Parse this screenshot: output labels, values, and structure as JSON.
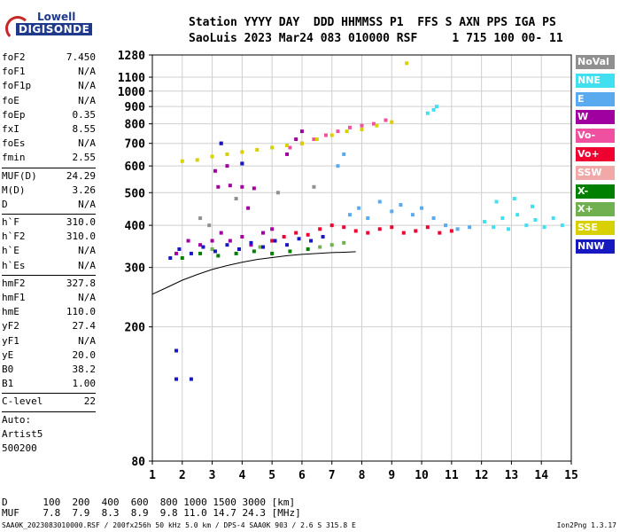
{
  "logo": {
    "line1": "Lowell",
    "line2": "DIGISONDE"
  },
  "header": {
    "row1": "Station YYYY DAY  DDD HHMMSS P1  FFS S AXN PPS IGA PS",
    "row2": "SaoLuis 2023 Mar24 083 010000 RSF     1 715 100 00- 11"
  },
  "params": [
    {
      "k": "foF2",
      "v": "7.450"
    },
    {
      "k": "foF1",
      "v": "N/A"
    },
    {
      "k": "foF1p",
      "v": "N/A"
    },
    {
      "k": "foE",
      "v": "N/A"
    },
    {
      "k": "foEp",
      "v": "0.35"
    },
    {
      "k": "fxI",
      "v": "8.55"
    },
    {
      "k": "foEs",
      "v": "N/A"
    },
    {
      "k": "fmin",
      "v": "2.55"
    },
    {
      "k": "MUF(D)",
      "v": "24.29",
      "sep": true
    },
    {
      "k": "M(D)",
      "v": "3.26"
    },
    {
      "k": "D",
      "v": "N/A"
    },
    {
      "k": "h`F",
      "v": "310.0",
      "sep": true
    },
    {
      "k": "h`F2",
      "v": "310.0"
    },
    {
      "k": "h`E",
      "v": "N/A"
    },
    {
      "k": "h`Es",
      "v": "N/A"
    },
    {
      "k": "hmF2",
      "v": "327.8",
      "sep": true
    },
    {
      "k": "hmF1",
      "v": "N/A"
    },
    {
      "k": "hmE",
      "v": "110.0"
    },
    {
      "k": "yF2",
      "v": "27.4"
    },
    {
      "k": "yF1",
      "v": "N/A"
    },
    {
      "k": "yE",
      "v": "20.0"
    },
    {
      "k": "B0",
      "v": "38.2"
    },
    {
      "k": "B1",
      "v": "1.00"
    },
    {
      "k": "C-level",
      "v": "22",
      "sep": true
    },
    {
      "k": "Auto:",
      "v": "",
      "sep": true
    },
    {
      "k": "Artist5",
      "v": ""
    },
    {
      "k": "500200",
      "v": ""
    }
  ],
  "legend": [
    {
      "label": "NoVal",
      "color": "#909090"
    },
    {
      "label": "NNE",
      "color": "#40e0f0"
    },
    {
      "label": "E",
      "color": "#5aaaf0"
    },
    {
      "label": "W",
      "color": "#a000a0"
    },
    {
      "label": "Vo-",
      "color": "#f050a0"
    },
    {
      "label": "Vo+",
      "color": "#f00030"
    },
    {
      "label": "SSW",
      "color": "#f0a8a8"
    },
    {
      "label": "X-",
      "color": "#008000"
    },
    {
      "label": "X+",
      "color": "#70b050"
    },
    {
      "label": "SSE",
      "color": "#d8d000"
    },
    {
      "label": "NNW",
      "color": "#1818c0"
    }
  ],
  "muf_table": {
    "row1": "D      100  200  400  600  800 1000 1500 3000 [km]",
    "row2": "MUF    7.8  7.9  8.3  8.9  9.8 11.0 14.7 24.3 [MHz]"
  },
  "footer": {
    "left": "SAA0K_2023083010000.RSF / 200fx256h 50 kHz 5.0 km / DPS-4 SAA0K 903 / 2.6 S 315.8 E",
    "right": "Ion2Png 1.3.17"
  },
  "chart_data": {
    "type": "scatter",
    "title": "",
    "xlabel": "",
    "ylabel": "",
    "xlim": [
      1,
      15
    ],
    "ylim": [
      80,
      1280
    ],
    "x_ticks": [
      1,
      2,
      3,
      4,
      5,
      6,
      7,
      8,
      9,
      10,
      11,
      12,
      13,
      14,
      15
    ],
    "y_ticks": [
      80,
      200,
      300,
      400,
      500,
      600,
      700,
      800,
      900,
      1000,
      1100,
      1280
    ],
    "y_scale": "log",
    "grid": true,
    "legend_position": "right",
    "series": [
      {
        "name": "NNE",
        "points": [
          [
            12.1,
            410
          ],
          [
            12.4,
            395
          ],
          [
            12.7,
            420
          ],
          [
            12.9,
            390
          ],
          [
            13.2,
            430
          ],
          [
            13.5,
            400
          ],
          [
            13.8,
            415
          ],
          [
            14.1,
            395
          ],
          [
            14.4,
            420
          ],
          [
            14.7,
            400
          ],
          [
            12.5,
            470
          ],
          [
            13.1,
            480
          ],
          [
            13.7,
            455
          ],
          [
            10.2,
            860
          ],
          [
            10.4,
            880
          ],
          [
            10.5,
            900
          ]
        ]
      },
      {
        "name": "E",
        "points": [
          [
            7.6,
            430
          ],
          [
            7.9,
            450
          ],
          [
            8.2,
            420
          ],
          [
            8.6,
            470
          ],
          [
            9.0,
            440
          ],
          [
            9.3,
            460
          ],
          [
            9.7,
            430
          ],
          [
            10.0,
            450
          ],
          [
            10.4,
            420
          ],
          [
            10.8,
            400
          ],
          [
            11.2,
            390
          ],
          [
            11.6,
            395
          ],
          [
            7.2,
            600
          ],
          [
            7.4,
            650
          ]
        ]
      },
      {
        "name": "W",
        "points": [
          [
            1.8,
            330
          ],
          [
            2.2,
            360
          ],
          [
            2.6,
            350
          ],
          [
            3.0,
            360
          ],
          [
            3.3,
            380
          ],
          [
            3.6,
            360
          ],
          [
            4.0,
            370
          ],
          [
            4.3,
            350
          ],
          [
            4.7,
            380
          ],
          [
            5.0,
            390
          ],
          [
            3.2,
            520
          ],
          [
            3.6,
            525
          ],
          [
            4.0,
            520
          ],
          [
            4.4,
            515
          ],
          [
            3.1,
            580
          ],
          [
            3.5,
            600
          ],
          [
            4.0,
            610
          ],
          [
            5.5,
            650
          ],
          [
            5.8,
            720
          ],
          [
            6.0,
            760
          ],
          [
            3.3,
            700
          ],
          [
            4.2,
            450
          ]
        ]
      },
      {
        "name": "Vo-",
        "points": [
          [
            5.6,
            680
          ],
          [
            6.0,
            700
          ],
          [
            6.4,
            720
          ],
          [
            6.8,
            740
          ],
          [
            7.2,
            760
          ],
          [
            7.6,
            780
          ],
          [
            8.0,
            790
          ],
          [
            8.4,
            800
          ],
          [
            8.8,
            820
          ]
        ]
      },
      {
        "name": "Vo+",
        "points": [
          [
            5.0,
            360
          ],
          [
            5.4,
            370
          ],
          [
            5.8,
            380
          ],
          [
            6.2,
            375
          ],
          [
            6.6,
            390
          ],
          [
            7.0,
            400
          ],
          [
            7.4,
            395
          ],
          [
            7.8,
            385
          ],
          [
            8.2,
            380
          ],
          [
            8.6,
            390
          ],
          [
            9.0,
            395
          ],
          [
            9.4,
            380
          ],
          [
            9.8,
            385
          ],
          [
            10.2,
            395
          ],
          [
            10.6,
            380
          ],
          [
            11.0,
            385
          ]
        ]
      },
      {
        "name": "X-",
        "points": [
          [
            2.0,
            320
          ],
          [
            2.6,
            330
          ],
          [
            3.2,
            325
          ],
          [
            3.8,
            330
          ],
          [
            4.4,
            335
          ],
          [
            5.0,
            330
          ],
          [
            5.6,
            335
          ],
          [
            6.2,
            340
          ]
        ]
      },
      {
        "name": "X+",
        "points": [
          [
            6.6,
            345
          ],
          [
            7.0,
            350
          ],
          [
            7.4,
            355
          ],
          [
            3.0,
            340
          ],
          [
            4.6,
            345
          ]
        ]
      },
      {
        "name": "SSE",
        "points": [
          [
            2.0,
            620
          ],
          [
            2.5,
            625
          ],
          [
            3.0,
            640
          ],
          [
            3.5,
            650
          ],
          [
            4.0,
            660
          ],
          [
            4.5,
            670
          ],
          [
            5.0,
            680
          ],
          [
            5.5,
            690
          ],
          [
            6.0,
            700
          ],
          [
            6.5,
            720
          ],
          [
            7.0,
            740
          ],
          [
            7.5,
            760
          ],
          [
            8.0,
            770
          ],
          [
            8.5,
            790
          ],
          [
            9.0,
            810
          ],
          [
            9.5,
            1210
          ]
        ]
      },
      {
        "name": "NNW",
        "points": [
          [
            1.6,
            320
          ],
          [
            1.9,
            340
          ],
          [
            2.3,
            330
          ],
          [
            2.7,
            345
          ],
          [
            3.1,
            335
          ],
          [
            3.5,
            350
          ],
          [
            3.9,
            340
          ],
          [
            4.3,
            355
          ],
          [
            4.7,
            345
          ],
          [
            5.1,
            360
          ],
          [
            5.5,
            350
          ],
          [
            5.9,
            365
          ],
          [
            6.3,
            360
          ],
          [
            6.7,
            370
          ],
          [
            1.8,
            140
          ],
          [
            1.8,
            170
          ],
          [
            2.3,
            140
          ],
          [
            3.3,
            700
          ],
          [
            4.0,
            610
          ]
        ]
      },
      {
        "name": "NoVal",
        "points": [
          [
            2.6,
            420
          ],
          [
            2.9,
            400
          ],
          [
            3.8,
            480
          ],
          [
            5.2,
            500
          ],
          [
            6.4,
            520
          ]
        ]
      }
    ],
    "trace": {
      "name": "",
      "points": [
        [
          1,
          250
        ],
        [
          1.5,
          262
        ],
        [
          2,
          275
        ],
        [
          2.5,
          286
        ],
        [
          3,
          296
        ],
        [
          3.5,
          304
        ],
        [
          4,
          311
        ],
        [
          4.5,
          317
        ],
        [
          5,
          321
        ],
        [
          5.5,
          325
        ],
        [
          6,
          328
        ],
        [
          6.5,
          330
        ],
        [
          7,
          332
        ],
        [
          7.5,
          333
        ],
        [
          7.8,
          334
        ]
      ]
    }
  }
}
